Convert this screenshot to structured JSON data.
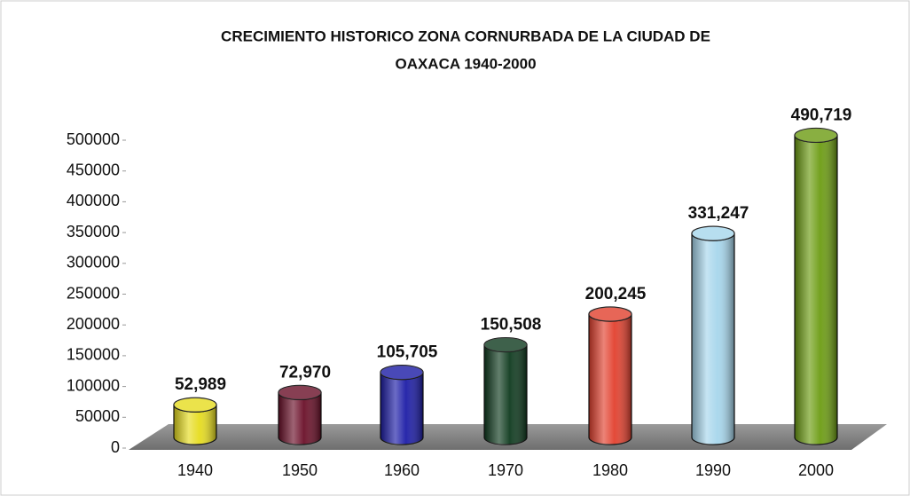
{
  "chart_data": {
    "type": "bar",
    "title": [
      "CRECIMIENTO HISTORICO ZONA CORNURBADA DE LA CIUDAD DE",
      "OAXACA 1940-2000"
    ],
    "categories": [
      "1940",
      "1950",
      "1960",
      "1970",
      "1980",
      "1990",
      "2000"
    ],
    "values": [
      52989,
      72970,
      105705,
      150508,
      200245,
      331247,
      490719
    ],
    "value_labels": [
      "52,989",
      "72,970",
      "105,705",
      "150,508",
      "200,245",
      "331,247",
      "490,719"
    ],
    "colors": [
      "#e6dc1e",
      "#6a0f28",
      "#1c1ca6",
      "#0e3a1e",
      "#e2402e",
      "#a6d6ec",
      "#6c9c12"
    ],
    "ylim": [
      0,
      500000
    ],
    "yticks": [
      0,
      50000,
      100000,
      150000,
      200000,
      250000,
      300000,
      350000,
      400000,
      450000,
      500000
    ]
  }
}
